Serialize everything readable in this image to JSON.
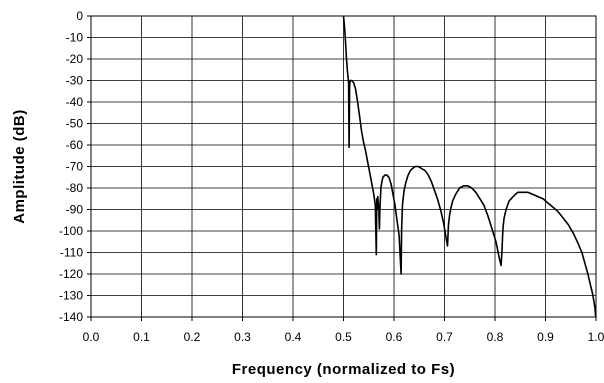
{
  "chart_data": {
    "type": "line",
    "title": "",
    "xlabel": "Frequency (normalized to Fs)",
    "ylabel": "Amplitude (dB)",
    "xlim": [
      0.0,
      1.0
    ],
    "ylim": [
      -140,
      0
    ],
    "x_ticks": [
      "0.0",
      "0.1",
      "0.2",
      "0.3",
      "0.4",
      "0.5",
      "0.6",
      "0.7",
      "0.8",
      "0.9",
      "1.0"
    ],
    "y_ticks": [
      "0",
      "-10",
      "-20",
      "-30",
      "-40",
      "-50",
      "-60",
      "-70",
      "-80",
      "-90",
      "-100",
      "-110",
      "-120",
      "-130",
      "-140"
    ],
    "grid": true,
    "line_color": "#000000",
    "series": [
      {
        "x": [
          0.5,
          0.502,
          0.504,
          0.506,
          0.508,
          0.51,
          0.511,
          0.512,
          0.513,
          0.516,
          0.52,
          0.524,
          0.528,
          0.532,
          0.536,
          0.54,
          0.544,
          0.548,
          0.552,
          0.556,
          0.56,
          0.563,
          0.565,
          0.566,
          0.567,
          0.568,
          0.57,
          0.571,
          0.572,
          0.574,
          0.576,
          0.578,
          0.582,
          0.586,
          0.59,
          0.594,
          0.598,
          0.602,
          0.606,
          0.61,
          0.614,
          0.615,
          0.616,
          0.617,
          0.62,
          0.624,
          0.628,
          0.632,
          0.636,
          0.642,
          0.648,
          0.655,
          0.662,
          0.668,
          0.674,
          0.68,
          0.686,
          0.692,
          0.698,
          0.703,
          0.706,
          0.708,
          0.71,
          0.712,
          0.716,
          0.722,
          0.73,
          0.738,
          0.746,
          0.754,
          0.762,
          0.77,
          0.778,
          0.786,
          0.794,
          0.802,
          0.808,
          0.812,
          0.814,
          0.815,
          0.816,
          0.818,
          0.822,
          0.828,
          0.836,
          0.845,
          0.855,
          0.865,
          0.875,
          0.885,
          0.895,
          0.905,
          0.915,
          0.925,
          0.935,
          0.945,
          0.955,
          0.965,
          0.972,
          0.978,
          0.984,
          0.989,
          0.993,
          0.996,
          0.998,
          0.999,
          1.0
        ],
        "y": [
          0,
          -5,
          -12,
          -20,
          -26,
          -31,
          -61,
          -33,
          -30,
          -30,
          -31,
          -34,
          -40,
          -47,
          -54,
          -59,
          -63,
          -68,
          -73,
          -78,
          -83,
          -88,
          -111,
          -85,
          -90,
          -84,
          -90,
          -99,
          -90,
          -80,
          -77,
          -75,
          -74,
          -74,
          -75,
          -78,
          -83,
          -88,
          -95,
          -102,
          -120,
          -100,
          -92,
          -87,
          -81,
          -77,
          -74,
          -72,
          -71,
          -70,
          -70,
          -71,
          -72,
          -74,
          -77,
          -81,
          -85,
          -90,
          -96,
          -103,
          -107,
          -97,
          -93,
          -90,
          -86,
          -83,
          -80,
          -79,
          -79,
          -80,
          -82,
          -85,
          -88,
          -93,
          -99,
          -105,
          -112,
          -116,
          -108,
          -102,
          -98,
          -94,
          -90,
          -86,
          -84,
          -82,
          -82,
          -82,
          -83,
          -84,
          -85,
          -87,
          -89,
          -91,
          -94,
          -97,
          -101,
          -106,
          -110,
          -115,
          -120,
          -125,
          -129,
          -133,
          -136,
          -139,
          -140
        ]
      }
    ]
  }
}
